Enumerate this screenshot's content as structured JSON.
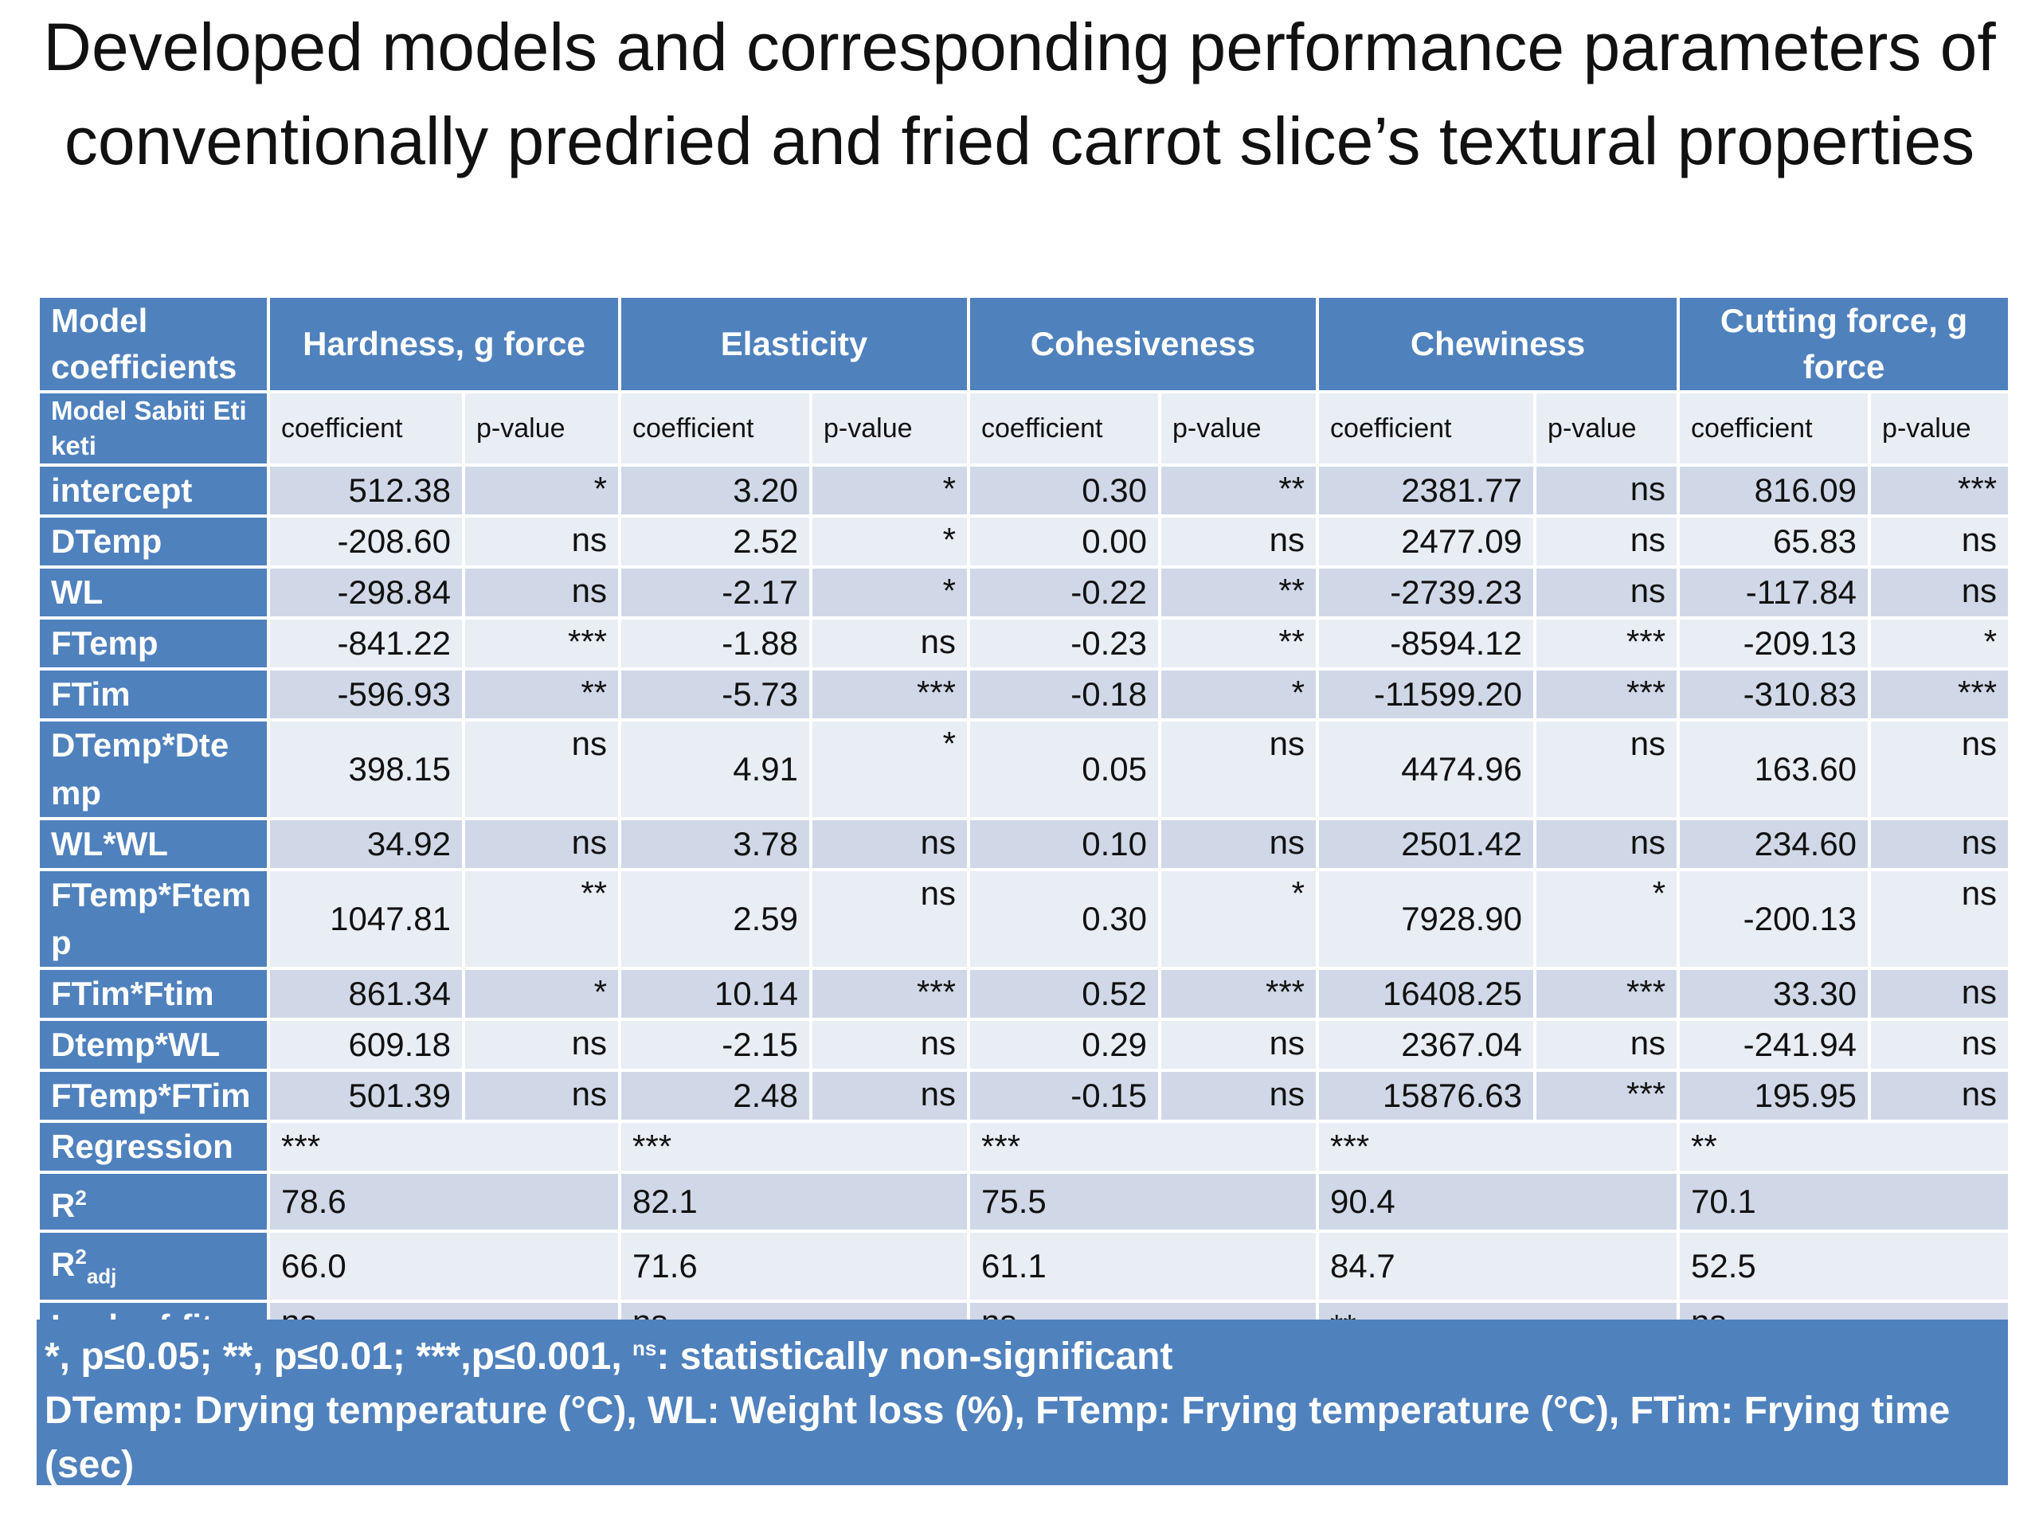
{
  "title": "Developed models and corresponding performance parameters of conventionally predried and fried carrot slice’s textural properties",
  "table": {
    "corner": "Model coefficients",
    "groups": [
      "Hardness, g  force",
      "Elasticity",
      "Cohesiveness",
      "Chewiness",
      "Cutting force, g force"
    ],
    "subheader": {
      "label": "Model Sabiti Etiketi",
      "columns": [
        "coefficient",
        "p-value",
        "coefficient",
        "p-value",
        "coefficient",
        "p-value",
        "coefficient",
        "p-value",
        "coefficient",
        "p-value"
      ]
    },
    "rows": [
      {
        "label": "intercept",
        "cells": [
          "512.38",
          "*",
          "3.20",
          "*",
          "0.30",
          "**",
          "2381.77",
          "ns",
          "816.09",
          "***"
        ]
      },
      {
        "label": "DTemp",
        "cells": [
          "-208.60",
          "ns",
          "2.52",
          "*",
          "0.00",
          "ns",
          "2477.09",
          "ns",
          "65.83",
          "ns"
        ]
      },
      {
        "label": "WL",
        "cells": [
          "-298.84",
          "ns",
          "-2.17",
          "*",
          "-0.22",
          "**",
          "-2739.23",
          "ns",
          "-117.84",
          "ns"
        ]
      },
      {
        "label": "FTemp",
        "cells": [
          "-841.22",
          "***",
          "-1.88",
          "ns",
          "-0.23",
          "**",
          "-8594.12",
          "***",
          "-209.13",
          "*"
        ]
      },
      {
        "label": "FTim",
        "cells": [
          "-596.93",
          "**",
          "-5.73",
          "***",
          "-0.18",
          "*",
          "-11599.20",
          "***",
          "-310.83",
          "***"
        ]
      },
      {
        "label": "DTemp*Dtemp",
        "cells": [
          "398.15",
          "ns",
          "4.91",
          "*",
          "0.05",
          "ns",
          "4474.96",
          "ns",
          "163.60",
          "ns"
        ]
      },
      {
        "label": "WL*WL",
        "cells": [
          "34.92",
          "ns",
          "3.78",
          "ns",
          "0.10",
          "ns",
          "2501.42",
          "ns",
          "234.60",
          "ns"
        ]
      },
      {
        "label": "FTemp*Ftemp",
        "cells": [
          "1047.81",
          "**",
          "2.59",
          "ns",
          "0.30",
          "*",
          "7928.90",
          "*",
          "-200.13",
          "ns"
        ]
      },
      {
        "label": "FTim*Ftim",
        "cells": [
          "861.34",
          "*",
          "10.14",
          "***",
          "0.52",
          "***",
          "16408.25",
          "***",
          "33.30",
          "ns"
        ]
      },
      {
        "label": "Dtemp*WL",
        "cells": [
          "609.18",
          "ns",
          "-2.15",
          "ns",
          "0.29",
          "ns",
          "2367.04",
          "ns",
          "-241.94",
          "ns"
        ]
      },
      {
        "label": "FTemp*FTim",
        "cells": [
          "501.39",
          "ns",
          "2.48",
          "ns",
          "-0.15",
          "ns",
          "15876.63",
          "***",
          "195.95",
          "ns"
        ]
      }
    ],
    "summary": [
      {
        "label": {
          "base": "Regression"
        },
        "cells": [
          "***",
          "***",
          "***",
          "***",
          "**"
        ]
      },
      {
        "label": {
          "base": "R",
          "sup": "2"
        },
        "cells": [
          "78.6",
          "82.1",
          "75.5",
          "90.4",
          "70.1"
        ]
      },
      {
        "label": {
          "base": "R",
          "sup": "2",
          "sub": "adj"
        },
        "cells": [
          "66.0",
          "71.6",
          "61.1",
          "84.7",
          "52.5"
        ]
      },
      {
        "label": {
          "base": "Lack-of-fit"
        },
        "cells": [
          "ns",
          "ns",
          "ns",
          "**",
          "ns"
        ]
      }
    ]
  },
  "notes": {
    "significance": {
      "text": "*, p≤0.05; **, p≤0.01; ***,p≤0.001, ",
      "sup": "ns",
      "after": ": statistically non-significant"
    },
    "abbreviations": "DTemp: Drying temperature (°C), WL: Weight loss (%), FTemp: Frying temperature (°C), FTim: Frying time (sec)"
  }
}
